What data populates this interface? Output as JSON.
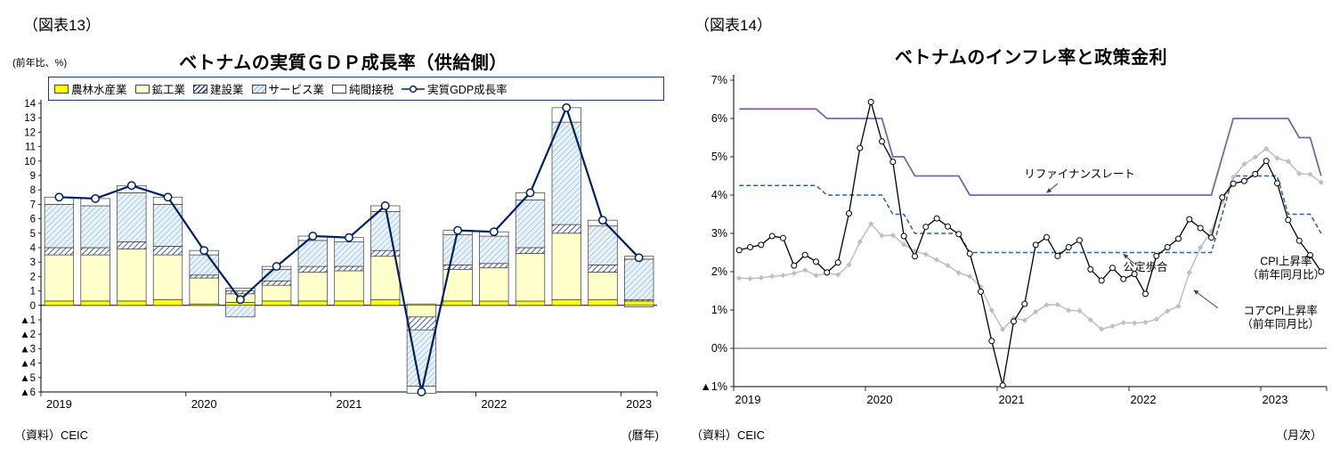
{
  "colors": {
    "agri": "#FFFF00",
    "mining": "#FFFFCC",
    "construction_stripe": "#24418E",
    "services_bg": "#EBF3FA",
    "services_stripe": "#9CC3E4",
    "tax": "#FFFFFF",
    "gdp_line": "#002060",
    "refinance": "#8064A2",
    "discount": "#2E6099",
    "cpi": "#000000",
    "core": "#BFBFBF"
  },
  "fig13": {
    "tag": "（図表13）",
    "y_unit": "(前年比、%)",
    "title": "ベトナムの実質ＧＤＰ成長率（供給側）",
    "source": "（資料）CEIC",
    "x_unit": "(暦年)",
    "legend_labels": [
      "農林水産業",
      "鉱工業",
      "建設業",
      "サービス業",
      "純間接税",
      "実質GDP成長率"
    ],
    "chart_data": {
      "type": "bar+line",
      "ylim": [
        -6,
        14
      ],
      "y_ticks": [
        "14",
        "13",
        "12",
        "11",
        "10",
        "9",
        "8",
        "7",
        "6",
        "5",
        "4",
        "3",
        "2",
        "1",
        "0",
        "▲1",
        "▲2",
        "▲3",
        "▲4",
        "▲5",
        "▲6"
      ],
      "x_year_labels": [
        "2019",
        "2020",
        "2021",
        "2022",
        "2023"
      ],
      "categories": [
        "2019Q1",
        "2019Q2",
        "2019Q3",
        "2019Q4",
        "2020Q1",
        "2020Q2",
        "2020Q3",
        "2020Q4",
        "2021Q1",
        "2021Q2",
        "2021Q3",
        "2021Q4",
        "2022Q1",
        "2022Q2",
        "2022Q3",
        "2022Q4",
        "2023Q1"
      ],
      "series": [
        {
          "name": "農林水産業",
          "style": "agri",
          "values": [
            0.3,
            0.3,
            0.3,
            0.4,
            0.1,
            0.2,
            0.3,
            0.3,
            0.3,
            0.4,
            0.1,
            0.3,
            0.3,
            0.3,
            0.4,
            0.4,
            0.3
          ]
        },
        {
          "name": "鉱工業",
          "style": "mining",
          "values": [
            3.2,
            3.2,
            3.6,
            3.1,
            1.8,
            0.6,
            1.1,
            2.0,
            2.1,
            3.0,
            -0.8,
            2.2,
            2.3,
            3.3,
            4.6,
            1.9,
            -0.1
          ]
        },
        {
          "name": "建設業",
          "style": "construction",
          "values": [
            0.5,
            0.5,
            0.5,
            0.6,
            0.2,
            0.2,
            0.3,
            0.4,
            0.3,
            0.4,
            -0.9,
            0.3,
            0.3,
            0.4,
            0.6,
            0.5,
            0.1
          ]
        },
        {
          "name": "サービス業",
          "style": "services",
          "values": [
            3.0,
            2.9,
            3.4,
            2.9,
            1.4,
            -0.8,
            0.8,
            1.8,
            1.7,
            2.7,
            -3.9,
            2.1,
            1.9,
            3.3,
            7.1,
            2.7,
            2.8
          ]
        },
        {
          "name": "純間接税",
          "style": "tax",
          "values": [
            0.5,
            0.5,
            0.5,
            0.5,
            0.3,
            0.2,
            0.2,
            0.3,
            0.3,
            0.4,
            -0.5,
            0.3,
            0.3,
            0.5,
            1.0,
            0.4,
            0.2
          ]
        }
      ],
      "line_series": {
        "name": "実質GDP成長率",
        "values": [
          7.5,
          7.4,
          8.3,
          7.5,
          3.8,
          0.4,
          2.7,
          4.8,
          4.7,
          6.9,
          -6.0,
          5.2,
          5.1,
          7.8,
          13.7,
          5.9,
          3.3
        ]
      }
    }
  },
  "fig14": {
    "tag": "（図表14）",
    "title": "ベトナムのインフレ率と政策金利",
    "source": "（資料）CEIC",
    "x_unit": "（月次）",
    "chart_data": {
      "type": "line",
      "ylim": [
        -1,
        7
      ],
      "y_ticks": [
        "7%",
        "6%",
        "5%",
        "4%",
        "3%",
        "2%",
        "1%",
        "0%",
        "▲1%"
      ],
      "x_year_labels": [
        "2019",
        "2020",
        "2021",
        "2022",
        "2023"
      ],
      "x_start": "2019-01",
      "x_end": "2023-06",
      "n_months": 54,
      "series": [
        {
          "name": "リファイナンスレート",
          "style": "refinance",
          "values": [
            6.25,
            6.25,
            6.25,
            6.25,
            6.25,
            6.25,
            6.25,
            6.25,
            6.0,
            6.0,
            6.0,
            6.0,
            6.0,
            6.0,
            5.0,
            5.0,
            4.5,
            4.5,
            4.5,
            4.5,
            4.5,
            4.0,
            4.0,
            4.0,
            4.0,
            4.0,
            4.0,
            4.0,
            4.0,
            4.0,
            4.0,
            4.0,
            4.0,
            4.0,
            4.0,
            4.0,
            4.0,
            4.0,
            4.0,
            4.0,
            4.0,
            4.0,
            4.0,
            4.0,
            5.0,
            6.0,
            6.0,
            6.0,
            6.0,
            6.0,
            6.0,
            5.5,
            5.5,
            4.5
          ]
        },
        {
          "name": "公定歩合",
          "style": "discount",
          "values": [
            4.25,
            4.25,
            4.25,
            4.25,
            4.25,
            4.25,
            4.25,
            4.25,
            4.0,
            4.0,
            4.0,
            4.0,
            4.0,
            4.0,
            3.5,
            3.5,
            3.0,
            3.0,
            3.0,
            3.0,
            3.0,
            2.5,
            2.5,
            2.5,
            2.5,
            2.5,
            2.5,
            2.5,
            2.5,
            2.5,
            2.5,
            2.5,
            2.5,
            2.5,
            2.5,
            2.5,
            2.5,
            2.5,
            2.5,
            2.5,
            2.5,
            2.5,
            2.5,
            2.5,
            3.5,
            4.5,
            4.5,
            4.5,
            4.5,
            4.5,
            3.5,
            3.5,
            3.5,
            3.0
          ]
        },
        {
          "name": "CPI上昇率（前年同月比）",
          "style": "cpi",
          "values": [
            2.56,
            2.64,
            2.7,
            2.93,
            2.88,
            2.16,
            2.44,
            2.26,
            1.98,
            2.24,
            3.52,
            5.23,
            6.43,
            5.4,
            4.87,
            2.93,
            2.4,
            3.17,
            3.39,
            3.18,
            2.98,
            2.47,
            1.48,
            0.19,
            -0.97,
            0.7,
            1.16,
            2.7,
            2.9,
            2.41,
            2.64,
            2.82,
            2.06,
            1.77,
            2.1,
            1.81,
            1.94,
            1.42,
            2.41,
            2.64,
            2.86,
            3.37,
            3.14,
            2.89,
            3.94,
            4.3,
            4.37,
            4.55,
            4.89,
            4.31,
            3.35,
            2.81,
            2.43,
            2.0
          ]
        },
        {
          "name": "コアCPI上昇率（前年同月比）",
          "style": "core",
          "values": [
            1.83,
            1.82,
            1.84,
            1.88,
            1.9,
            1.96,
            2.04,
            1.9,
            1.96,
            1.92,
            2.18,
            2.78,
            3.25,
            2.94,
            2.95,
            2.71,
            2.54,
            2.45,
            2.31,
            2.16,
            1.97,
            1.88,
            1.61,
            0.99,
            0.49,
            0.79,
            0.73,
            0.95,
            1.13,
            1.14,
            0.99,
            0.98,
            0.74,
            0.5,
            0.58,
            0.67,
            0.66,
            0.68,
            0.76,
            0.97,
            1.1,
            1.98,
            2.63,
            3.06,
            3.82,
            4.47,
            4.81,
            4.99,
            5.21,
            4.96,
            4.88,
            4.56,
            4.54,
            4.33
          ]
        }
      ],
      "annotations": [
        {
          "lines": [
            "リファイナンスレート"
          ],
          "x": 31,
          "y": 4.45,
          "anchor": "middle",
          "arrow": {
            "fx": 29.0,
            "fy": 4.3,
            "tx": 28.0,
            "ty": 4.06
          }
        },
        {
          "lines": [
            "公定歩合"
          ],
          "x": 37,
          "y": 2.02,
          "anchor": "middle",
          "arrow": {
            "fx": 36.0,
            "fy": 2.2,
            "tx": 35.0,
            "ty": 2.46
          }
        },
        {
          "lines": [
            "CPI上昇率",
            "（前年同月比）"
          ],
          "x": 49.8,
          "y": 2.18,
          "anchor": "middle"
        },
        {
          "lines": [
            "コアCPI上昇率",
            "（前年同月比）"
          ],
          "x": 49.3,
          "y": 0.88,
          "anchor": "middle",
          "arrow": {
            "fx": 43.6,
            "fy": 1.05,
            "tx": 41.4,
            "ty": 1.52
          }
        }
      ]
    }
  }
}
